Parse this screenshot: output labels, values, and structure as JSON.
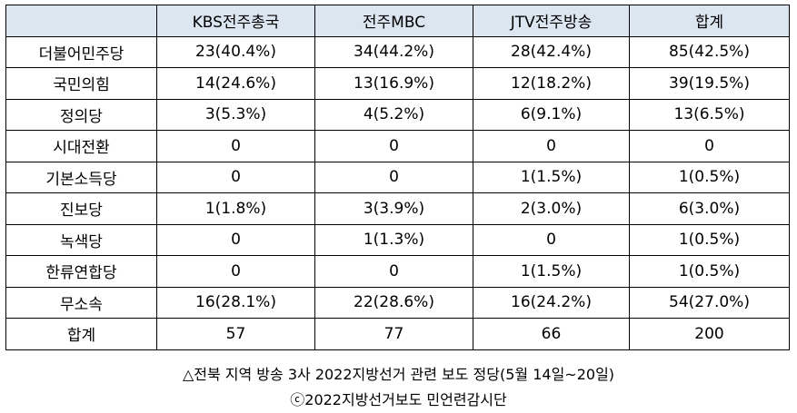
{
  "table": {
    "headers": [
      "",
      "KBS전주총국",
      "전주MBC",
      "JTV전주방송",
      "합계"
    ],
    "rows": [
      {
        "party": "더불어민주당",
        "values": [
          "23(40.4%)",
          "34(44.2%)",
          "28(42.4%)",
          "85(42.5%)"
        ]
      },
      {
        "party": "국민의힘",
        "values": [
          "14(24.6%)",
          "13(16.9%)",
          "12(18.2%)",
          "39(19.5%)"
        ]
      },
      {
        "party": "정의당",
        "values": [
          "3(5.3%)",
          "4(5.2%)",
          "6(9.1%)",
          "13(6.5%)"
        ]
      },
      {
        "party": "시대전환",
        "values": [
          "0",
          "0",
          "0",
          "0"
        ]
      },
      {
        "party": "기본소득당",
        "values": [
          "0",
          "0",
          "1(1.5%)",
          "1(0.5%)"
        ]
      },
      {
        "party": "진보당",
        "values": [
          "1(1.8%)",
          "3(3.9%)",
          "2(3.0%)",
          "6(3.0%)"
        ]
      },
      {
        "party": "녹색당",
        "values": [
          "0",
          "1(1.3%)",
          "0",
          "1(0.5%)"
        ]
      },
      {
        "party": "한류연합당",
        "values": [
          "0",
          "0",
          "1(1.5%)",
          "1(0.5%)"
        ]
      },
      {
        "party": "무소속",
        "values": [
          "16(28.1%)",
          "22(28.6%)",
          "16(24.2%)",
          "54(27.0%)"
        ]
      },
      {
        "party": "합계",
        "values": [
          "57",
          "77",
          "66",
          "200"
        ]
      }
    ]
  },
  "caption": {
    "line1": "△전북 지역 방송 3사 2022지방선거 관련 보도 정당(5월 14일~20일)",
    "line2": "ⓒ2022지방선거보도 민언련감시단"
  },
  "colors": {
    "header_bg": "#dce6f1",
    "border": "#000000"
  }
}
